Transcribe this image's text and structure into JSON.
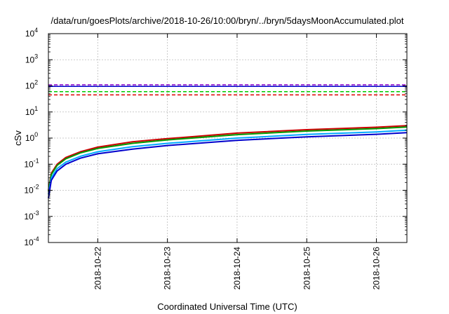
{
  "chart_data": {
    "type": "line",
    "title": "/data/run/goesPlots/archive/2018-10-26/10:00/bryn/../bryn/5daysMoonAccumulated.plot",
    "xlabel": "Coordinated Universal Time (UTC)",
    "ylabel": "cSv",
    "yscale": "log",
    "ylim": [
      0.0001,
      10000
    ],
    "xlim": [
      "2018-10-21T07:00",
      "2018-10-26T10:30"
    ],
    "grid": true,
    "x_ticks": [
      "2018-10-22",
      "2018-10-23",
      "2018-10-24",
      "2018-10-25",
      "2018-10-26"
    ],
    "y_ticks": [
      {
        "base": "10",
        "exp": "-4"
      },
      {
        "base": "10",
        "exp": "-3"
      },
      {
        "base": "10",
        "exp": "-2"
      },
      {
        "base": "10",
        "exp": "-1"
      },
      {
        "base": "10",
        "exp": "0"
      },
      {
        "base": "10",
        "exp": "1"
      },
      {
        "base": "10",
        "exp": "2"
      },
      {
        "base": "10",
        "exp": "3"
      },
      {
        "base": "10",
        "exp": "4"
      }
    ],
    "series": [
      {
        "color": "#cc0000",
        "style": "solid",
        "width": 2,
        "x": [
          "2018-10-21T07:00",
          "2018-10-21T08:00",
          "2018-10-21T10:00",
          "2018-10-21T13:00",
          "2018-10-21T18:00",
          "2018-10-22T00:00",
          "2018-10-22T12:00",
          "2018-10-23T00:00",
          "2018-10-24T00:00",
          "2018-10-25T00:00",
          "2018-10-26T00:00",
          "2018-10-26T10:30"
        ],
        "y": [
          0.01,
          0.045,
          0.1,
          0.18,
          0.3,
          0.45,
          0.72,
          0.95,
          1.55,
          2.1,
          2.6,
          3.0
        ]
      },
      {
        "color": "#009900",
        "style": "solid",
        "width": 2,
        "x": [
          "2018-10-21T07:00",
          "2018-10-21T08:00",
          "2018-10-21T10:00",
          "2018-10-21T13:00",
          "2018-10-21T18:00",
          "2018-10-22T00:00",
          "2018-10-22T12:00",
          "2018-10-23T00:00",
          "2018-10-24T00:00",
          "2018-10-25T00:00",
          "2018-10-26T00:00",
          "2018-10-26T10:30"
        ],
        "y": [
          0.009,
          0.04,
          0.09,
          0.16,
          0.27,
          0.4,
          0.63,
          0.85,
          1.35,
          1.85,
          2.3,
          2.65
        ]
      },
      {
        "color": "#00aaff",
        "style": "solid",
        "width": 2,
        "x": [
          "2018-10-21T07:00",
          "2018-10-21T08:00",
          "2018-10-21T10:00",
          "2018-10-21T13:00",
          "2018-10-21T18:00",
          "2018-10-22T00:00",
          "2018-10-22T12:00",
          "2018-10-23T00:00",
          "2018-10-24T00:00",
          "2018-10-25T00:00",
          "2018-10-26T00:00",
          "2018-10-26T10:30"
        ],
        "y": [
          0.007,
          0.03,
          0.068,
          0.12,
          0.2,
          0.3,
          0.47,
          0.63,
          1.0,
          1.38,
          1.72,
          2.0
        ]
      },
      {
        "color": "#0000cc",
        "style": "solid",
        "width": 2,
        "x": [
          "2018-10-21T07:00",
          "2018-10-21T08:00",
          "2018-10-21T10:00",
          "2018-10-21T13:00",
          "2018-10-21T18:00",
          "2018-10-22T00:00",
          "2018-10-22T12:00",
          "2018-10-23T00:00",
          "2018-10-24T00:00",
          "2018-10-25T00:00",
          "2018-10-26T00:00",
          "2018-10-26T10:30"
        ],
        "y": [
          0.005,
          0.024,
          0.055,
          0.1,
          0.17,
          0.25,
          0.38,
          0.52,
          0.82,
          1.12,
          1.4,
          1.62
        ]
      },
      {
        "color": "#8800cc",
        "style": "dashed",
        "width": 1.5,
        "x": [
          "2018-10-21T07:00",
          "2018-10-26T10:30"
        ],
        "y": [
          110,
          110
        ]
      },
      {
        "color": "#0000cc",
        "style": "solid",
        "width": 1.5,
        "x": [
          "2018-10-21T07:00",
          "2018-10-26T10:30"
        ],
        "y": [
          95,
          95
        ]
      },
      {
        "color": "#00cc00",
        "style": "dashed",
        "width": 1.5,
        "x": [
          "2018-10-21T07:00",
          "2018-10-26T10:30"
        ],
        "y": [
          60,
          60
        ]
      },
      {
        "color": "#dd0000",
        "style": "dashed",
        "width": 1.5,
        "x": [
          "2018-10-21T07:00",
          "2018-10-26T10:30"
        ],
        "y": [
          45,
          45
        ]
      }
    ]
  }
}
